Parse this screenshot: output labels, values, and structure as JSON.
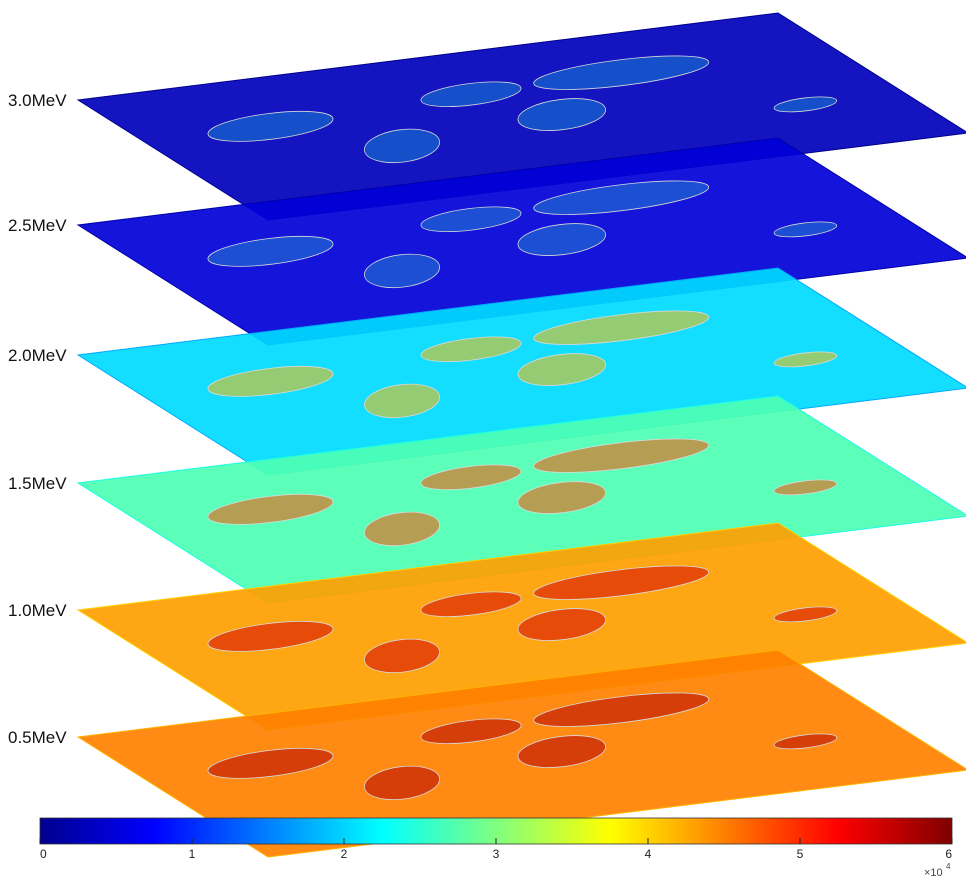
{
  "chart_data": {
    "type": "heatmap",
    "title": "",
    "layers": [
      {
        "label": "3.0MeV",
        "energy_mev": 3.0,
        "level": 0.05
      },
      {
        "label": "2.5MeV",
        "energy_mev": 2.5,
        "level": 0.08
      },
      {
        "label": "2.0MeV",
        "energy_mev": 2.0,
        "level": 0.34
      },
      {
        "label": "1.5MeV",
        "energy_mev": 1.5,
        "level": 0.45
      },
      {
        "label": "1.0MeV",
        "energy_mev": 1.0,
        "level": 0.72
      },
      {
        "label": "0.5MeV",
        "energy_mev": 0.5,
        "level": 0.75
      }
    ],
    "colorbar": {
      "colormap": "jet",
      "min": 0,
      "max": 6,
      "ticks": [
        "0",
        "1",
        "2",
        "3",
        "4",
        "5",
        "6"
      ],
      "multiplier": "×10",
      "exponent": "4"
    },
    "overlay": "coastlines"
  }
}
